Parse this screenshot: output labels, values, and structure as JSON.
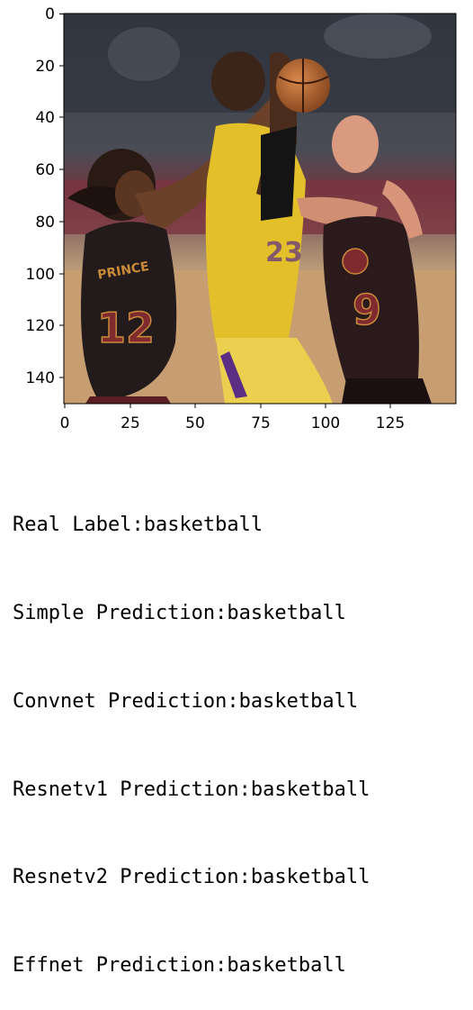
{
  "plot": {
    "image_description": "",
    "y_ticks": [
      "0",
      "20",
      "40",
      "60",
      "80",
      "100",
      "120",
      "140"
    ],
    "x_ticks": [
      "0",
      "25",
      "50",
      "75",
      "100",
      "125"
    ],
    "jersey_left_name": "PRINCE",
    "jersey_left_number": "12",
    "jersey_right_number": "9"
  },
  "output_lines": [
    {
      "label": "Real Label",
      "value": "basketball"
    },
    {
      "label": "Simple Prediction",
      "value": "basketball"
    },
    {
      "label": "Convnet Prediction",
      "value": "basketball"
    },
    {
      "label": "Resnetv1 Prediction",
      "value": "basketball"
    },
    {
      "label": "Resnetv2 Prediction",
      "value": "basketball"
    },
    {
      "label": "Effnet Prediction",
      "value": "basketball"
    }
  ],
  "separator": ":"
}
